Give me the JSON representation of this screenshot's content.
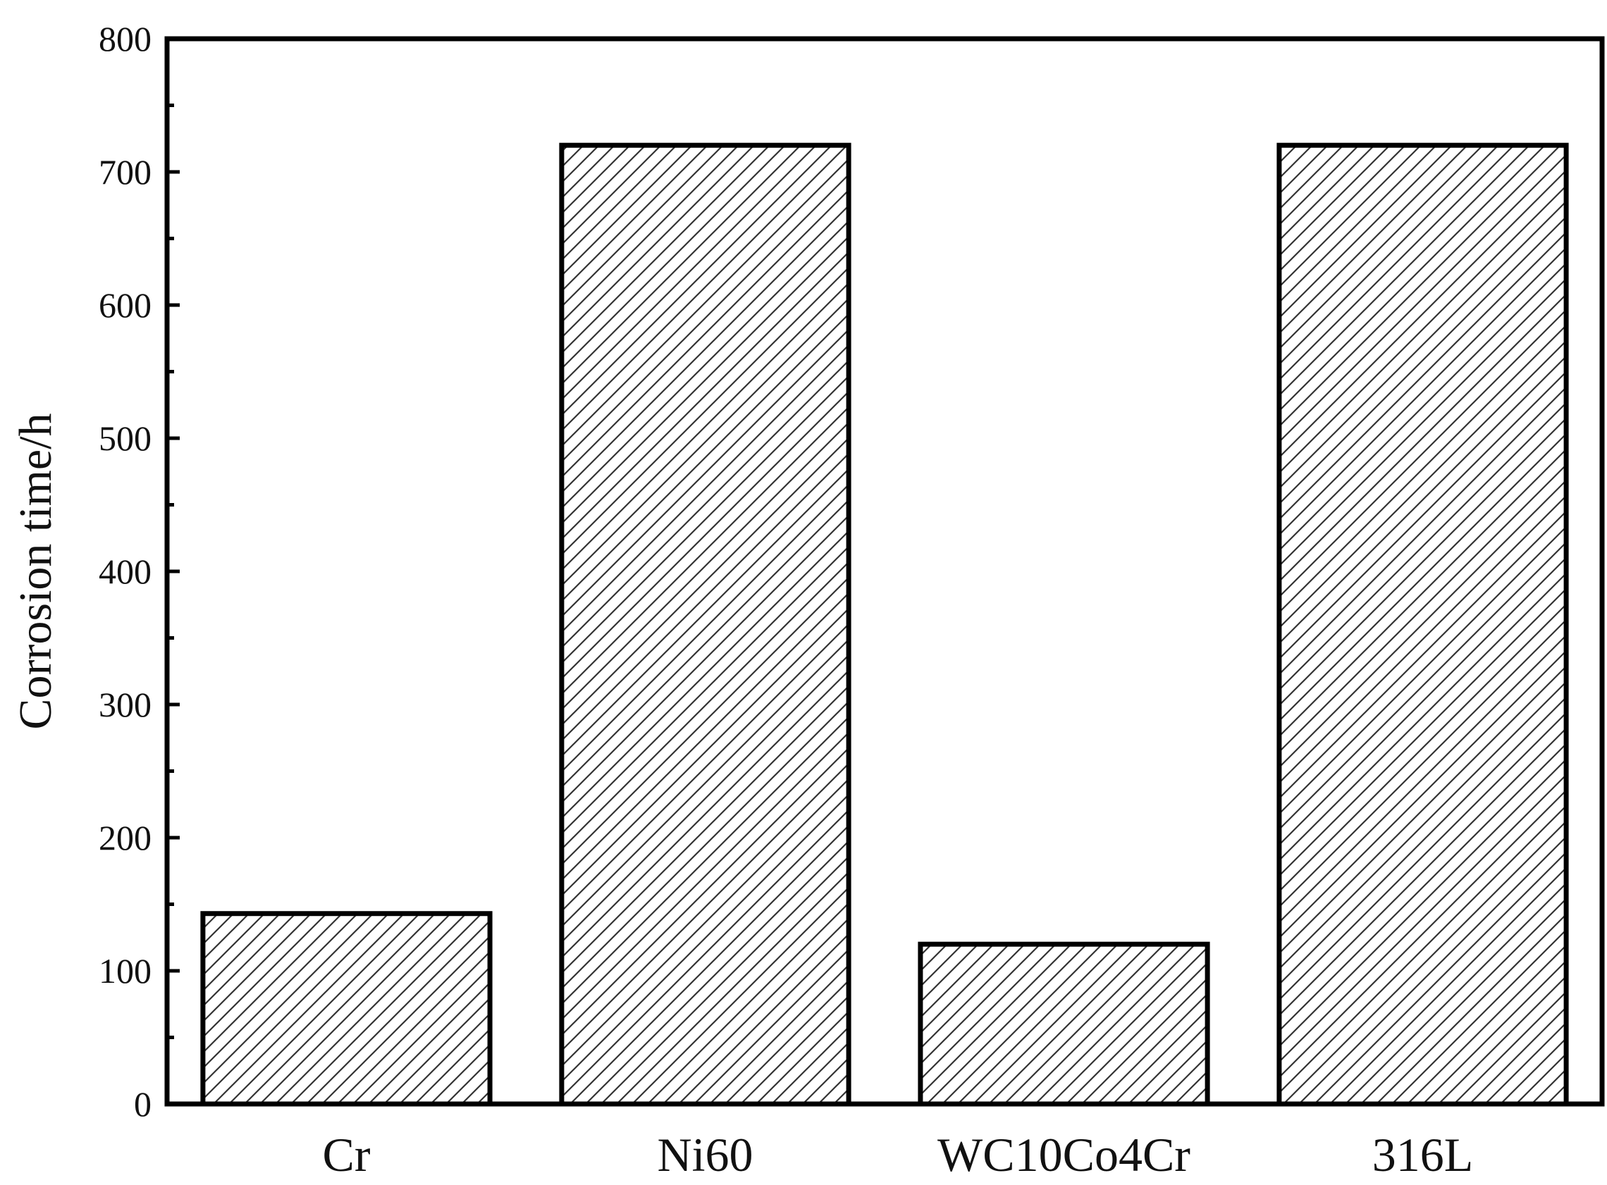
{
  "chart_data": {
    "type": "bar",
    "title": "",
    "xlabel": "",
    "ylabel": "Corrosion time/h",
    "categories": [
      "Cr",
      "Ni60",
      "WC10Co4Cr",
      "316L"
    ],
    "values": [
      143,
      720,
      120,
      720
    ],
    "ylim": [
      0,
      800
    ],
    "yticks": [
      0,
      100,
      200,
      300,
      400,
      500,
      600,
      700,
      800
    ],
    "ytick_labels": [
      "0",
      "100",
      "200",
      "300",
      "400",
      "500",
      "600",
      "700",
      "800"
    ],
    "grid": false,
    "legend": "none",
    "bar_fill": "hatched",
    "colors": {
      "bar_stroke": "#000000",
      "hatch": "#333333",
      "axis": "#000000",
      "background": "#ffffff"
    }
  }
}
